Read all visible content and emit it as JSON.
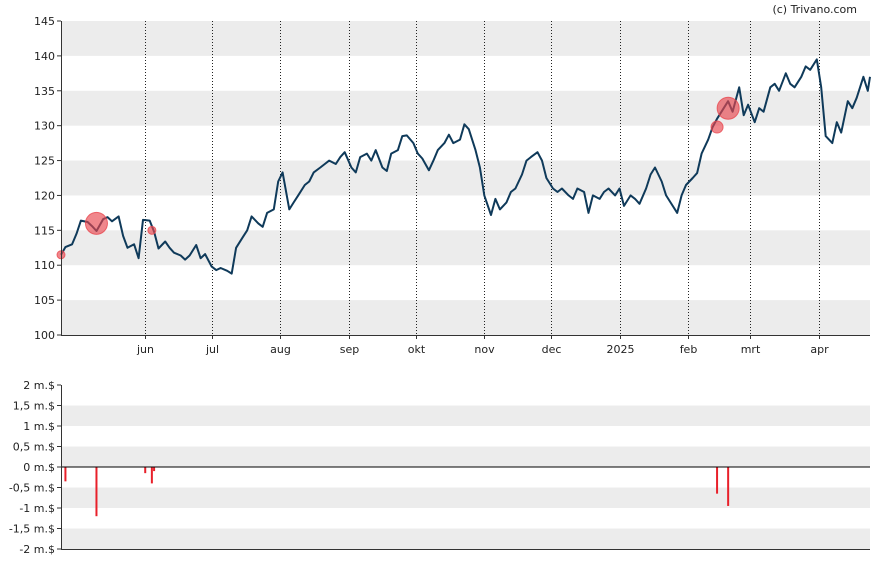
{
  "copyright": "(c) Trivano.com",
  "colors": {
    "line": "#0f3a5a",
    "marker": "#e8474f",
    "volume_bar": "#e8202a",
    "band": "#ececec",
    "axis": "#333333",
    "gridline": "#222222"
  },
  "chart_data": [
    {
      "type": "line",
      "x_range": [
        "2024-04-24",
        "2025-04-24"
      ],
      "ylim": [
        100,
        145
      ],
      "y_ticks": [
        100,
        105,
        110,
        115,
        120,
        125,
        130,
        135,
        140,
        145
      ],
      "y_tick_labels": [
        "100",
        "105",
        "110",
        "115",
        "120",
        "125",
        "130",
        "135",
        "140",
        "145"
      ],
      "x_ticks": [
        {
          "date": "2024-06-01",
          "label": "jun"
        },
        {
          "date": "2024-07-01",
          "label": "jul"
        },
        {
          "date": "2024-08-01",
          "label": "aug"
        },
        {
          "date": "2024-09-01",
          "label": "sep"
        },
        {
          "date": "2024-10-01",
          "label": "okt"
        },
        {
          "date": "2024-11-01",
          "label": "nov"
        },
        {
          "date": "2024-12-01",
          "label": "dec"
        },
        {
          "date": "2025-01-01",
          "label": "2025"
        },
        {
          "date": "2025-02-01",
          "label": "feb"
        },
        {
          "date": "2025-03-01",
          "label": "mrt"
        },
        {
          "date": "2025-04-01",
          "label": "apr"
        }
      ],
      "grid": "vertical dotted at month boundaries, alternating horizontal bands",
      "series": [
        {
          "points": [
            [
              "2024-04-24",
              111.5
            ],
            [
              "2024-04-26",
              112.6
            ],
            [
              "2024-04-29",
              113.0
            ],
            [
              "2024-05-01",
              114.5
            ],
            [
              "2024-05-03",
              116.4
            ],
            [
              "2024-05-06",
              116.2
            ],
            [
              "2024-05-08",
              115.6
            ],
            [
              "2024-05-10",
              114.9
            ],
            [
              "2024-05-13",
              116.6
            ],
            [
              "2024-05-15",
              116.9
            ],
            [
              "2024-05-17",
              116.3
            ],
            [
              "2024-05-20",
              117.0
            ],
            [
              "2024-05-22",
              114.2
            ],
            [
              "2024-05-24",
              112.5
            ],
            [
              "2024-05-27",
              113.0
            ],
            [
              "2024-05-29",
              111.0
            ],
            [
              "2024-05-31",
              116.5
            ],
            [
              "2024-06-03",
              116.4
            ],
            [
              "2024-06-05",
              114.8
            ],
            [
              "2024-06-07",
              112.4
            ],
            [
              "2024-06-10",
              113.4
            ],
            [
              "2024-06-12",
              112.5
            ],
            [
              "2024-06-14",
              111.8
            ],
            [
              "2024-06-17",
              111.4
            ],
            [
              "2024-06-19",
              110.8
            ],
            [
              "2024-06-21",
              111.4
            ],
            [
              "2024-06-24",
              112.9
            ],
            [
              "2024-06-26",
              111.0
            ],
            [
              "2024-06-28",
              111.6
            ],
            [
              "2024-07-01",
              109.8
            ],
            [
              "2024-07-03",
              109.3
            ],
            [
              "2024-07-05",
              109.6
            ],
            [
              "2024-07-08",
              109.2
            ],
            [
              "2024-07-10",
              108.8
            ],
            [
              "2024-07-12",
              112.5
            ],
            [
              "2024-07-15",
              114.0
            ],
            [
              "2024-07-17",
              115.0
            ],
            [
              "2024-07-19",
              117.0
            ],
            [
              "2024-07-22",
              116.0
            ],
            [
              "2024-07-24",
              115.5
            ],
            [
              "2024-07-26",
              117.5
            ],
            [
              "2024-07-29",
              118.0
            ],
            [
              "2024-07-31",
              122.0
            ],
            [
              "2024-08-02",
              123.3
            ],
            [
              "2024-08-05",
              118.0
            ],
            [
              "2024-08-07",
              119.0
            ],
            [
              "2024-08-09",
              120.0
            ],
            [
              "2024-08-12",
              121.5
            ],
            [
              "2024-08-14",
              122.0
            ],
            [
              "2024-08-16",
              123.3
            ],
            [
              "2024-08-19",
              124.0
            ],
            [
              "2024-08-21",
              124.5
            ],
            [
              "2024-08-23",
              125.0
            ],
            [
              "2024-08-26",
              124.5
            ],
            [
              "2024-08-28",
              125.5
            ],
            [
              "2024-08-30",
              126.2
            ],
            [
              "2024-09-02",
              124.0
            ],
            [
              "2024-09-04",
              123.3
            ],
            [
              "2024-09-06",
              125.5
            ],
            [
              "2024-09-09",
              126.0
            ],
            [
              "2024-09-11",
              125.0
            ],
            [
              "2024-09-13",
              126.5
            ],
            [
              "2024-09-16",
              124.0
            ],
            [
              "2024-09-18",
              123.5
            ],
            [
              "2024-09-20",
              126.0
            ],
            [
              "2024-09-23",
              126.5
            ],
            [
              "2024-09-25",
              128.5
            ],
            [
              "2024-09-27",
              128.6
            ],
            [
              "2024-09-30",
              127.5
            ],
            [
              "2024-10-02",
              126.0
            ],
            [
              "2024-10-04",
              125.3
            ],
            [
              "2024-10-07",
              123.6
            ],
            [
              "2024-10-09",
              125.0
            ],
            [
              "2024-10-11",
              126.5
            ],
            [
              "2024-10-14",
              127.5
            ],
            [
              "2024-10-16",
              128.7
            ],
            [
              "2024-10-18",
              127.5
            ],
            [
              "2024-10-21",
              128.0
            ],
            [
              "2024-10-23",
              130.2
            ],
            [
              "2024-10-25",
              129.5
            ],
            [
              "2024-10-28",
              126.5
            ],
            [
              "2024-10-30",
              124.0
            ],
            [
              "2024-11-01",
              120.0
            ],
            [
              "2024-11-04",
              117.2
            ],
            [
              "2024-11-06",
              119.5
            ],
            [
              "2024-11-08",
              118.0
            ],
            [
              "2024-11-11",
              119.0
            ],
            [
              "2024-11-13",
              120.5
            ],
            [
              "2024-11-15",
              121.0
            ],
            [
              "2024-11-18",
              123.0
            ],
            [
              "2024-11-20",
              125.0
            ],
            [
              "2024-11-22",
              125.5
            ],
            [
              "2024-11-25",
              126.2
            ],
            [
              "2024-11-27",
              125.0
            ],
            [
              "2024-11-29",
              122.5
            ],
            [
              "2024-12-02",
              121.0
            ],
            [
              "2024-12-04",
              120.5
            ],
            [
              "2024-12-06",
              121.0
            ],
            [
              "2024-12-09",
              120.0
            ],
            [
              "2024-12-11",
              119.5
            ],
            [
              "2024-12-13",
              121.0
            ],
            [
              "2024-12-16",
              120.5
            ],
            [
              "2024-12-18",
              117.5
            ],
            [
              "2024-12-20",
              120.0
            ],
            [
              "2024-12-23",
              119.5
            ],
            [
              "2024-12-25",
              120.5
            ],
            [
              "2024-12-27",
              121.0
            ],
            [
              "2024-12-30",
              120.0
            ],
            [
              "2025-01-01",
              121.0
            ],
            [
              "2025-01-03",
              118.5
            ],
            [
              "2025-01-06",
              120.0
            ],
            [
              "2025-01-08",
              119.5
            ],
            [
              "2025-01-10",
              118.8
            ],
            [
              "2025-01-13",
              121.0
            ],
            [
              "2025-01-15",
              123.0
            ],
            [
              "2025-01-17",
              124.0
            ],
            [
              "2025-01-20",
              122.0
            ],
            [
              "2025-01-22",
              120.0
            ],
            [
              "2025-01-24",
              119.0
            ],
            [
              "2025-01-27",
              117.5
            ],
            [
              "2025-01-29",
              120.0
            ],
            [
              "2025-01-31",
              121.5
            ],
            [
              "2025-02-03",
              122.5
            ],
            [
              "2025-02-05",
              123.2
            ],
            [
              "2025-02-07",
              126.0
            ],
            [
              "2025-02-10",
              128.0
            ],
            [
              "2025-02-12",
              129.8
            ],
            [
              "2025-02-14",
              131.0
            ],
            [
              "2025-02-17",
              132.5
            ],
            [
              "2025-02-19",
              133.5
            ],
            [
              "2025-02-21",
              132.0
            ],
            [
              "2025-02-24",
              135.5
            ],
            [
              "2025-02-26",
              131.5
            ],
            [
              "2025-02-28",
              133.0
            ],
            [
              "2025-03-03",
              130.5
            ],
            [
              "2025-03-05",
              132.5
            ],
            [
              "2025-03-07",
              132.0
            ],
            [
              "2025-03-10",
              135.5
            ],
            [
              "2025-03-12",
              136.0
            ],
            [
              "2025-03-14",
              135.0
            ],
            [
              "2025-03-17",
              137.5
            ],
            [
              "2025-03-19",
              136.0
            ],
            [
              "2025-03-21",
              135.5
            ],
            [
              "2025-03-24",
              137.0
            ],
            [
              "2025-03-26",
              138.5
            ],
            [
              "2025-03-28",
              138.0
            ],
            [
              "2025-03-31",
              139.5
            ],
            [
              "2025-04-02",
              135.5
            ],
            [
              "2025-04-04",
              128.5
            ],
            [
              "2025-04-07",
              127.5
            ],
            [
              "2025-04-09",
              130.5
            ],
            [
              "2025-04-11",
              129.0
            ],
            [
              "2025-04-14",
              133.5
            ],
            [
              "2025-04-16",
              132.5
            ],
            [
              "2025-04-18",
              134.0
            ],
            [
              "2025-04-21",
              137.0
            ],
            [
              "2025-04-23",
              135.0
            ],
            [
              "2025-04-24",
              137.0
            ]
          ]
        }
      ],
      "markers": [
        {
          "date": "2024-04-24",
          "value": 111.5,
          "size": "small"
        },
        {
          "date": "2024-05-10",
          "value": 116.0,
          "size": "large"
        },
        {
          "date": "2024-06-04",
          "value": 115.0,
          "size": "small"
        },
        {
          "date": "2025-02-14",
          "value": 129.8,
          "size": "medium"
        },
        {
          "date": "2025-02-19",
          "value": 132.5,
          "size": "large"
        }
      ]
    },
    {
      "type": "bar",
      "ylim": [
        -2,
        2
      ],
      "y_ticks": [
        -2,
        -1.5,
        -1,
        -0.5,
        0,
        0.5,
        1,
        1.5,
        2
      ],
      "y_tick_labels": [
        "-2 m.$",
        "-1,5 m.$",
        "-1 m.$",
        "-0,5 m.$",
        "0 m.$",
        "0,5 m.$",
        "1 m.$",
        "1,5 m.$",
        "2 m.$"
      ],
      "unit": "m.$",
      "grid": "alternating horizontal bands",
      "bars": [
        {
          "date": "2024-04-26",
          "value": -0.35
        },
        {
          "date": "2024-05-10",
          "value": -1.2
        },
        {
          "date": "2024-06-01",
          "value": -0.15
        },
        {
          "date": "2024-06-04",
          "value": -0.4
        },
        {
          "date": "2024-06-05",
          "value": -0.1
        },
        {
          "date": "2025-02-14",
          "value": -0.65
        },
        {
          "date": "2025-02-19",
          "value": -0.95
        }
      ]
    }
  ]
}
